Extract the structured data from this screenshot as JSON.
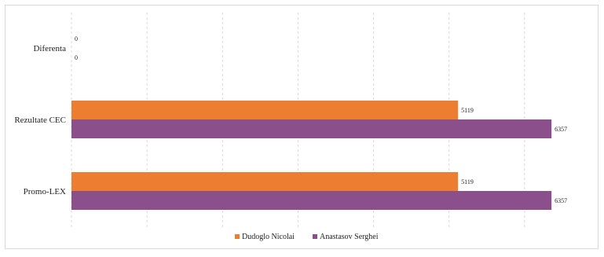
{
  "chart_data": {
    "type": "bar",
    "orientation": "horizontal",
    "categories": [
      "Diferenta",
      "Rezultate CEC",
      "Promo-LEX"
    ],
    "series": [
      {
        "name": "Dudoglo Nicolai",
        "color": "#ED7D31",
        "values": [
          0,
          5119,
          5119
        ]
      },
      {
        "name": "Anastasov Serghei",
        "color": "#8B4F8C",
        "values": [
          0,
          6357,
          6357
        ]
      }
    ],
    "xlim": [
      0,
      7000
    ],
    "grid": true,
    "grid_style": "dashed",
    "legend_position": "bottom"
  }
}
